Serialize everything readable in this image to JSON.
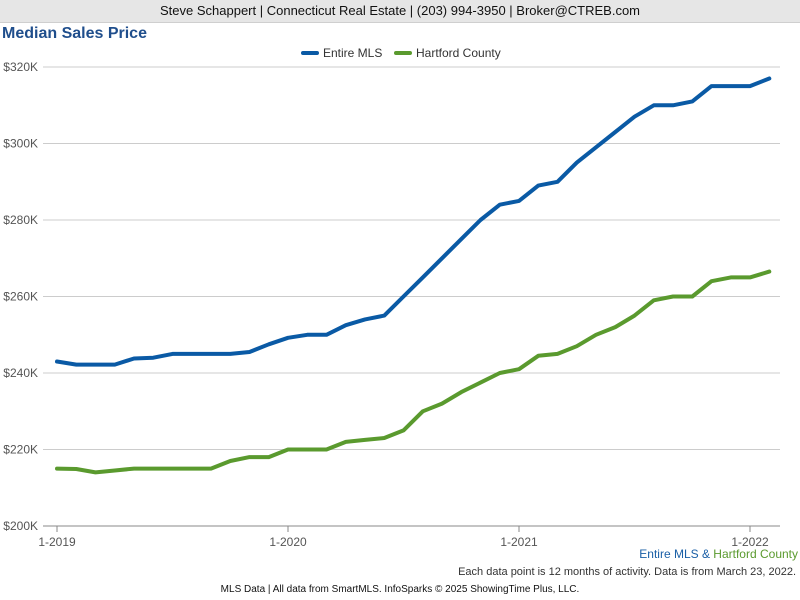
{
  "header": {
    "text": "Steve Schappert | Connecticut Real Estate | (203) 994-3950 | Broker@CTREB.com"
  },
  "caption": {
    "series1": "Entire MLS",
    "separator": " & ",
    "series2": "Hartford County"
  },
  "footnote": "Each data point is 12 months of activity. Data is from March 23, 2022.",
  "footer": "MLS Data | All data from SmartMLS. InfoSparks © 2025 ShowingTime Plus, LLC.",
  "colors": {
    "entire_mls": "#0a5aa5",
    "hartford": "#5a9a2e",
    "grid": "#cccccc",
    "title": "#1f4e8c"
  },
  "chart_data": {
    "type": "line",
    "title": "Median Sales Price",
    "xlabel": "",
    "ylabel": "",
    "x_tick_labels": [
      "1-2019",
      "1-2020",
      "1-2021",
      "1-2022"
    ],
    "y_tick_labels": [
      "$200K",
      "$220K",
      "$240K",
      "$260K",
      "$280K",
      "$300K",
      "$320K"
    ],
    "ylim": [
      200000,
      320000
    ],
    "grid": true,
    "legend_position": "top-center",
    "x": [
      "2019-01",
      "2019-02",
      "2019-03",
      "2019-04",
      "2019-05",
      "2019-06",
      "2019-07",
      "2019-08",
      "2019-09",
      "2019-10",
      "2019-11",
      "2019-12",
      "2020-01",
      "2020-02",
      "2020-03",
      "2020-04",
      "2020-05",
      "2020-06",
      "2020-07",
      "2020-08",
      "2020-09",
      "2020-10",
      "2020-11",
      "2020-12",
      "2021-01",
      "2021-02",
      "2021-03",
      "2021-04",
      "2021-05",
      "2021-06",
      "2021-07",
      "2021-08",
      "2021-09",
      "2021-10",
      "2021-11",
      "2021-12",
      "2022-01",
      "2022-02"
    ],
    "series": [
      {
        "name": "Entire MLS",
        "values": [
          243000,
          242200,
          242200,
          242200,
          243800,
          244000,
          245000,
          245000,
          245000,
          245000,
          245500,
          247500,
          249200,
          250000,
          250000,
          252500,
          254000,
          255000,
          260000,
          265000,
          270000,
          275000,
          280000,
          284000,
          285000,
          289000,
          290000,
          295000,
          299000,
          303000,
          307000,
          310000,
          310000,
          311000,
          315000,
          315000,
          315000,
          317000
        ]
      },
      {
        "name": "Hartford County",
        "values": [
          215000,
          214900,
          214000,
          214500,
          215000,
          215000,
          215000,
          215000,
          215000,
          217000,
          218000,
          218000,
          220000,
          220000,
          220000,
          222000,
          222500,
          223000,
          225000,
          230000,
          232000,
          235000,
          237500,
          240000,
          241000,
          244500,
          245000,
          247000,
          250000,
          252000,
          255000,
          259000,
          260000,
          260000,
          264000,
          265000,
          265000,
          266500
        ]
      }
    ]
  }
}
